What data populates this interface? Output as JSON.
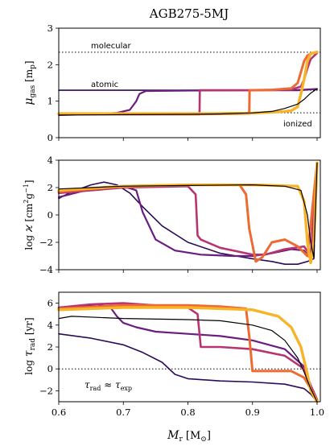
{
  "figure": {
    "title": "AGB275-5MJ",
    "xlabel_main": "M",
    "xlabel_sub": "r",
    "xlabel_unit": "[M",
    "xlabel_sun": "⊙",
    "xlabel_close": "]"
  },
  "chart_data": [
    {
      "type": "line",
      "panel": "mu_gas",
      "ylabel": "μgas [mp]",
      "ylabel_parts": {
        "sym": "μ",
        "sub": "gas",
        "unit_open": " [m",
        "unit_sub": "p",
        "unit_close": "]"
      },
      "xlim": [
        0.6,
        1.005
      ],
      "ylim": [
        0,
        3
      ],
      "xticks": [
        0.6,
        0.7,
        0.8,
        0.9,
        1.0
      ],
      "yticks": [
        0,
        1,
        2,
        3
      ],
      "x_tick_labels_shown": false,
      "grid": false,
      "reference_lines": [
        {
          "y": 2.34,
          "label": "molecular"
        },
        {
          "y": 1.3,
          "label": "atomic"
        },
        {
          "y": 0.68,
          "label": "ionized"
        }
      ],
      "series": [
        {
          "color": "#2b0a57",
          "width": 1.6,
          "x": [
            0.6,
            0.65,
            0.7,
            0.75,
            0.8,
            0.85,
            0.9,
            0.93,
            0.95,
            0.97,
            0.98,
            0.99,
            1.0
          ],
          "y": [
            1.3,
            1.3,
            1.3,
            1.3,
            1.3,
            1.3,
            1.3,
            1.3,
            1.3,
            1.31,
            1.32,
            1.33,
            1.34
          ]
        },
        {
          "color": "#6b1d80",
          "width": 2.2,
          "x": [
            0.6,
            0.65,
            0.69,
            0.71,
            0.72,
            0.725,
            0.735,
            0.8,
            0.9,
            0.95,
            0.97,
            0.98,
            0.99,
            1.0
          ],
          "y": [
            0.62,
            0.64,
            0.68,
            0.76,
            1.0,
            1.2,
            1.28,
            1.29,
            1.3,
            1.3,
            1.3,
            1.31,
            1.32,
            1.33
          ]
        },
        {
          "color": "#b73470",
          "width": 2.6,
          "x": [
            0.6,
            0.7,
            0.8,
            0.818,
            0.8185,
            0.83,
            0.9,
            0.96,
            0.975,
            0.98,
            0.985,
            0.99,
            1.0
          ],
          "y": [
            0.64,
            0.64,
            0.64,
            0.64,
            1.3,
            1.3,
            1.3,
            1.32,
            1.4,
            1.6,
            1.9,
            2.15,
            2.32
          ]
        },
        {
          "color": "#ec6b33",
          "width": 3.0,
          "x": [
            0.6,
            0.7,
            0.85,
            0.895,
            0.8955,
            0.93,
            0.96,
            0.97,
            0.975,
            0.98,
            0.985,
            0.99,
            1.0
          ],
          "y": [
            0.64,
            0.64,
            0.65,
            0.66,
            1.3,
            1.31,
            1.35,
            1.5,
            1.8,
            2.1,
            2.25,
            2.3,
            2.34
          ]
        },
        {
          "color": "#f8b428",
          "width": 3.4,
          "x": [
            0.6,
            0.8,
            0.9,
            0.93,
            0.95,
            0.96,
            0.97,
            0.975,
            0.98,
            0.985,
            0.99,
            1.0
          ],
          "y": [
            0.66,
            0.66,
            0.67,
            0.7,
            0.72,
            0.74,
            0.85,
            1.2,
            1.6,
            2.1,
            2.3,
            2.35
          ]
        },
        {
          "color": "#000000",
          "width": 1.2,
          "x": [
            0.6,
            0.7,
            0.8,
            0.85,
            0.9,
            0.93,
            0.95,
            0.97,
            0.98,
            0.99,
            1.0
          ],
          "y": [
            0.62,
            0.63,
            0.64,
            0.65,
            0.68,
            0.72,
            0.8,
            0.92,
            1.05,
            1.22,
            1.34
          ]
        }
      ]
    },
    {
      "type": "line",
      "panel": "log_kappa",
      "ylabel": "log ϰ [cm² g⁻¹]",
      "ylabel_parts": {
        "pre": "log ",
        "sym": "ϰ",
        "unit": " [cm",
        "sup1": "2",
        "mid": "g",
        "sup2": "−1",
        "close": "]"
      },
      "xlim": [
        0.6,
        1.005
      ],
      "ylim": [
        -4,
        4
      ],
      "xticks": [
        0.6,
        0.7,
        0.8,
        0.9,
        1.0
      ],
      "yticks": [
        -4,
        -2,
        0,
        2,
        4
      ],
      "x_tick_labels_shown": false,
      "grid": false,
      "series": [
        {
          "color": "#2b0a57",
          "width": 1.6,
          "x": [
            0.6,
            0.62,
            0.65,
            0.67,
            0.69,
            0.71,
            0.73,
            0.76,
            0.8,
            0.85,
            0.9,
            0.93,
            0.95,
            0.97,
            0.985,
            0.995,
            1.0
          ],
          "y": [
            1.2,
            1.7,
            2.2,
            2.4,
            2.2,
            1.6,
            0.6,
            -0.8,
            -2.0,
            -2.8,
            -3.2,
            -3.4,
            -3.6,
            -3.6,
            -3.4,
            -3.2,
            3.8
          ]
        },
        {
          "color": "#6b1d80",
          "width": 2.2,
          "x": [
            0.6,
            0.65,
            0.7,
            0.72,
            0.73,
            0.75,
            0.78,
            0.82,
            0.87,
            0.9,
            0.93,
            0.96,
            0.98,
            0.99,
            1.0
          ],
          "y": [
            1.3,
            1.9,
            2.1,
            1.8,
            0.2,
            -1.8,
            -2.6,
            -2.9,
            -3.0,
            -3.0,
            -2.8,
            -2.5,
            -2.6,
            -3.2,
            3.8
          ]
        },
        {
          "color": "#b73470",
          "width": 2.6,
          "x": [
            0.6,
            0.7,
            0.8,
            0.812,
            0.815,
            0.82,
            0.85,
            0.88,
            0.9,
            0.92,
            0.95,
            0.98,
            0.99,
            1.0
          ],
          "y": [
            1.6,
            2.0,
            2.1,
            1.5,
            -1.5,
            -1.8,
            -2.4,
            -2.7,
            -2.9,
            -2.9,
            -2.5,
            -2.3,
            -3.0,
            3.8
          ]
        },
        {
          "color": "#ec6b33",
          "width": 3.0,
          "x": [
            0.6,
            0.7,
            0.8,
            0.88,
            0.89,
            0.895,
            0.905,
            0.915,
            0.93,
            0.95,
            0.97,
            0.985,
            1.0
          ],
          "y": [
            1.7,
            2.1,
            2.2,
            2.2,
            1.5,
            -1.0,
            -3.4,
            -3.1,
            -2.0,
            -1.8,
            -2.3,
            -3.0,
            3.8
          ]
        },
        {
          "color": "#f8b428",
          "width": 3.4,
          "x": [
            0.6,
            0.7,
            0.8,
            0.9,
            0.97,
            0.98,
            0.985,
            0.99,
            0.995,
            1.0
          ],
          "y": [
            1.8,
            2.1,
            2.2,
            2.2,
            2.1,
            1.0,
            -2.0,
            -3.5,
            -2.0,
            3.8
          ]
        },
        {
          "color": "#000000",
          "width": 1.2,
          "x": [
            0.6,
            0.7,
            0.8,
            0.9,
            0.95,
            0.975,
            0.985,
            0.99,
            0.995,
            1.0
          ],
          "y": [
            1.9,
            2.1,
            2.15,
            2.2,
            2.1,
            1.8,
            0.0,
            -2.0,
            -3.1,
            3.8
          ]
        }
      ]
    },
    {
      "type": "line",
      "panel": "log_tau_rad",
      "ylabel": "log τrad [yr]",
      "ylabel_parts": {
        "pre": "log ",
        "sym": "τ",
        "sub": "rad",
        "unit": " [yr]"
      },
      "annotation": {
        "sym1": "τ",
        "sub1": "rad",
        "approx": " ≈ ",
        "sym2": "τ",
        "sub2": "exp"
      },
      "xlim": [
        0.6,
        1.005
      ],
      "ylim": [
        -3,
        7
      ],
      "xticks": [
        0.6,
        0.7,
        0.8,
        0.9,
        1.0
      ],
      "xtick_labels": [
        "0.6",
        "0.7",
        "0.8",
        "0.9",
        "1.0"
      ],
      "yticks": [
        -2,
        0,
        2,
        4,
        6
      ],
      "reference_lines": [
        {
          "y": 0,
          "label": ""
        }
      ],
      "grid": false,
      "series": [
        {
          "color": "#2b0a57",
          "width": 1.6,
          "x": [
            0.6,
            0.65,
            0.7,
            0.73,
            0.76,
            0.78,
            0.8,
            0.85,
            0.9,
            0.95,
            0.98,
            0.99,
            1.0
          ],
          "y": [
            3.2,
            2.8,
            2.2,
            1.5,
            0.6,
            -0.5,
            -0.9,
            -1.1,
            -1.2,
            -1.4,
            -1.8,
            -2.3,
            -3.0
          ]
        },
        {
          "color": "#6b1d80",
          "width": 2.2,
          "x": [
            0.6,
            0.63,
            0.66,
            0.68,
            0.69,
            0.7,
            0.72,
            0.75,
            0.8,
            0.85,
            0.9,
            0.95,
            0.98,
            0.99,
            1.0
          ],
          "y": [
            5.5,
            5.7,
            5.9,
            5.6,
            4.8,
            4.2,
            3.8,
            3.4,
            3.2,
            3.0,
            2.6,
            1.8,
            0.2,
            -1.5,
            -2.8
          ]
        },
        {
          "color": "#b73470",
          "width": 2.6,
          "x": [
            0.6,
            0.65,
            0.7,
            0.75,
            0.8,
            0.815,
            0.82,
            0.85,
            0.9,
            0.95,
            0.98,
            0.99,
            1.0
          ],
          "y": [
            5.6,
            5.9,
            6.0,
            5.8,
            5.6,
            5.0,
            2.0,
            2.0,
            1.8,
            1.2,
            0.0,
            -1.5,
            -2.8
          ]
        },
        {
          "color": "#ec6b33",
          "width": 3.0,
          "x": [
            0.6,
            0.7,
            0.8,
            0.85,
            0.89,
            0.895,
            0.9,
            0.93,
            0.96,
            0.98,
            0.99,
            1.0
          ],
          "y": [
            5.5,
            5.8,
            5.8,
            5.7,
            5.5,
            3.0,
            -0.2,
            -0.2,
            -0.2,
            -0.8,
            -1.8,
            -2.9
          ]
        },
        {
          "color": "#f8b428",
          "width": 3.4,
          "x": [
            0.6,
            0.7,
            0.8,
            0.9,
            0.94,
            0.96,
            0.975,
            0.985,
            0.99,
            1.0
          ],
          "y": [
            5.4,
            5.6,
            5.6,
            5.4,
            4.8,
            3.8,
            2.0,
            -0.5,
            -2.0,
            -3.0
          ]
        },
        {
          "color": "#000000",
          "width": 1.2,
          "x": [
            0.6,
            0.62,
            0.7,
            0.8,
            0.85,
            0.9,
            0.93,
            0.95,
            0.97,
            0.98,
            0.99,
            1.0
          ],
          "y": [
            4.6,
            4.8,
            4.6,
            4.5,
            4.4,
            4.0,
            3.5,
            2.6,
            1.0,
            -0.3,
            -1.8,
            -3.0
          ]
        }
      ]
    }
  ]
}
